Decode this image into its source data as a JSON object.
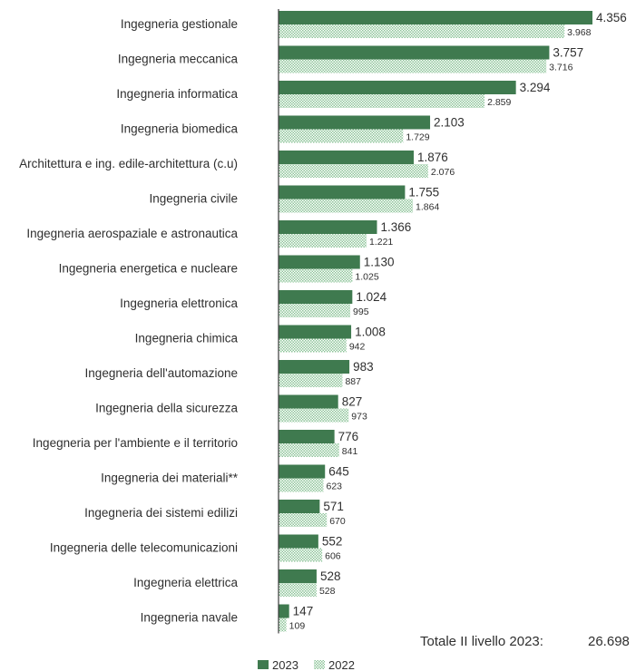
{
  "colors": {
    "bar_2023": "#3f7a4f",
    "bar_2022_pattern": "#8ec49a",
    "axis": "#3b3b3b",
    "text": "#2f2f2f"
  },
  "total": {
    "label": "Totale II livello 2023:",
    "value": "26.698"
  },
  "chart_data": {
    "type": "bar",
    "orientation": "horizontal",
    "categories": [
      "Ingegneria gestionale",
      "Ingegneria meccanica",
      "Ingegneria informatica",
      "Ingegneria biomedica",
      "Architettura e ing. edile-architettura (c.u)",
      "Ingegneria civile",
      "Ingegneria aerospaziale e astronautica",
      "Ingegneria energetica e nucleare",
      "Ingegneria elettronica",
      "Ingegneria chimica",
      "Ingegneria dell'automazione",
      "Ingegneria della sicurezza",
      "Ingegneria per l'ambiente e il territorio",
      "Ingegneria dei materiali**",
      "Ingegneria dei sistemi edilizi",
      "Ingegneria delle telecomunicazioni",
      "Ingegneria elettrica",
      "Ingegneria navale"
    ],
    "series": [
      {
        "name": "2023",
        "values": [
          4356,
          3757,
          3294,
          2103,
          1876,
          1755,
          1366,
          1130,
          1024,
          1008,
          983,
          827,
          776,
          645,
          571,
          552,
          528,
          147
        ],
        "labels": [
          "4.356",
          "3.757",
          "3.294",
          "2.103",
          "1.876",
          "1.755",
          "1.366",
          "1.130",
          "1.024",
          "1.008",
          "983",
          "827",
          "776",
          "645",
          "571",
          "552",
          "528",
          "147"
        ]
      },
      {
        "name": "2022",
        "values": [
          3968,
          3716,
          2859,
          1729,
          2076,
          1864,
          1221,
          1025,
          995,
          942,
          887,
          973,
          841,
          623,
          670,
          606,
          528,
          109
        ],
        "labels": [
          "3.968",
          "3.716",
          "2.859",
          "1.729",
          "2.076",
          "1.864",
          "1.221",
          "1.025",
          "995",
          "942",
          "887",
          "973",
          "841",
          "623",
          "670",
          "606",
          "528",
          "109"
        ]
      }
    ],
    "legend": [
      "2023",
      "2022"
    ],
    "legend_position": "bottom-left",
    "xlim": [
      0,
      4356
    ],
    "grid": false
  }
}
